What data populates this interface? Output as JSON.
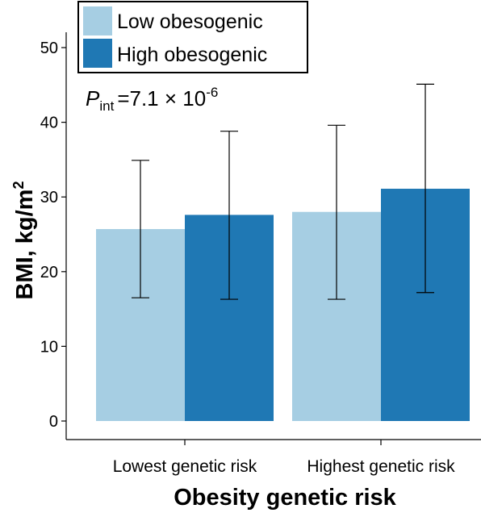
{
  "chart_data": {
    "type": "bar",
    "categories": [
      "Lowest genetic risk",
      "Highest genetic risk"
    ],
    "series": [
      {
        "name": "Low obesogenic",
        "color": "#a6cee3",
        "values": [
          25.7,
          28.0
        ],
        "error_low": [
          16.5,
          16.3
        ],
        "error_high": [
          34.9,
          39.6
        ]
      },
      {
        "name": "High obesogenic",
        "color": "#1f78b4",
        "values": [
          27.6,
          31.1
        ],
        "error_low": [
          16.3,
          17.2
        ],
        "error_high": [
          38.8,
          45.1
        ]
      }
    ],
    "xlabel": "Obesity genetic risk",
    "ylabel": {
      "main": "BMI, kg/m",
      "sup": "2"
    },
    "ylim": [
      0,
      50
    ],
    "yticks": [
      0,
      10,
      20,
      30,
      40,
      50
    ],
    "grid": false,
    "legend_position": "top-left",
    "annotation": {
      "p": "P",
      "sub": "int",
      "value": "=7.1 × 10",
      "exp": "-6"
    }
  }
}
